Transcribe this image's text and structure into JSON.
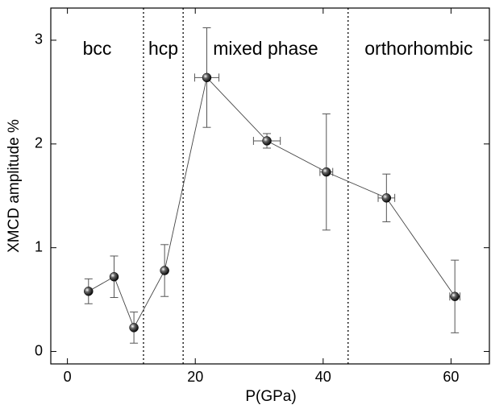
{
  "chart_data": {
    "type": "scatter",
    "x_label": "P(GPa)",
    "y_label": "XMCD amplitude %",
    "xlim": [
      -2.6,
      66
    ],
    "ylim": [
      -0.12,
      3.31
    ],
    "xticks": [
      0,
      20,
      40,
      60
    ],
    "yticks": [
      0,
      1,
      2,
      3
    ],
    "series": [
      {
        "color": "#000000",
        "connected": true,
        "x": [
          3.3,
          7.3,
          10.4,
          15.2,
          21.8,
          31.2,
          40.5,
          49.9,
          60.6
        ],
        "values": [
          0.58,
          0.72,
          0.23,
          0.78,
          2.64,
          2.03,
          1.73,
          1.48,
          0.53
        ],
        "xerr": [
          0,
          0,
          0,
          0,
          1.9,
          2.1,
          1.0,
          1.3,
          0.8
        ],
        "yerr": [
          0.12,
          0.2,
          0.15,
          0.25,
          0.48,
          0.07,
          0.56,
          0.23,
          0.35
        ]
      }
    ],
    "phase_boundaries": [
      11.9,
      18.1,
      43.9
    ],
    "regions": [
      "bcc",
      "hcp",
      "mixed phase",
      "orthorhombic"
    ]
  }
}
